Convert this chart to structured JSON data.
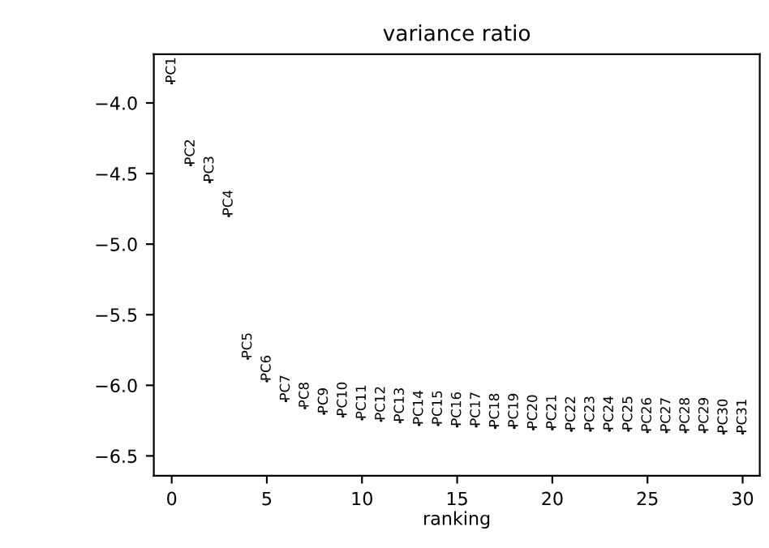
{
  "chart_data": {
    "type": "scatter",
    "title": "variance ratio",
    "xlabel": "ranking",
    "x": [
      0,
      1,
      2,
      3,
      4,
      5,
      6,
      7,
      8,
      9,
      10,
      11,
      12,
      13,
      14,
      15,
      16,
      17,
      18,
      19,
      20,
      21,
      22,
      23,
      24,
      25,
      26,
      27,
      28,
      29,
      30
    ],
    "values": [
      -3.86,
      -4.44,
      -4.56,
      -4.8,
      -5.81,
      -5.97,
      -6.11,
      -6.16,
      -6.2,
      -6.22,
      -6.24,
      -6.25,
      -6.26,
      -6.28,
      -6.28,
      -6.29,
      -6.29,
      -6.3,
      -6.3,
      -6.31,
      -6.31,
      -6.32,
      -6.32,
      -6.32,
      -6.32,
      -6.33,
      -6.33,
      -6.33,
      -6.33,
      -6.34,
      -6.34
    ],
    "value_labels": [
      "PC1",
      "PC2",
      "PC3",
      "PC4",
      "PC5",
      "PC6",
      "PC7",
      "PC8",
      "PC9",
      "PC10",
      "PC11",
      "PC12",
      "PC13",
      "PC14",
      "PC15",
      "PC16",
      "PC17",
      "PC18",
      "PC19",
      "PC20",
      "PC21",
      "PC22",
      "PC23",
      "PC24",
      "PC25",
      "PC26",
      "PC27",
      "PC28",
      "PC29",
      "PC30",
      "PC31"
    ],
    "grid": false,
    "xlim": [
      -0.94,
      30.9
    ],
    "ylim": [
      -6.64,
      -3.655
    ],
    "xticks": [
      0,
      5,
      10,
      15,
      20,
      25,
      30
    ],
    "yticks": [
      {
        "value": -4.0,
        "label": "−4.0"
      },
      {
        "value": -4.5,
        "label": "−4.5"
      },
      {
        "value": -5.0,
        "label": "−5.0"
      },
      {
        "value": -5.5,
        "label": "−5.5"
      },
      {
        "value": -6.0,
        "label": "−6.0"
      },
      {
        "value": -6.5,
        "label": "−6.5"
      }
    ]
  }
}
